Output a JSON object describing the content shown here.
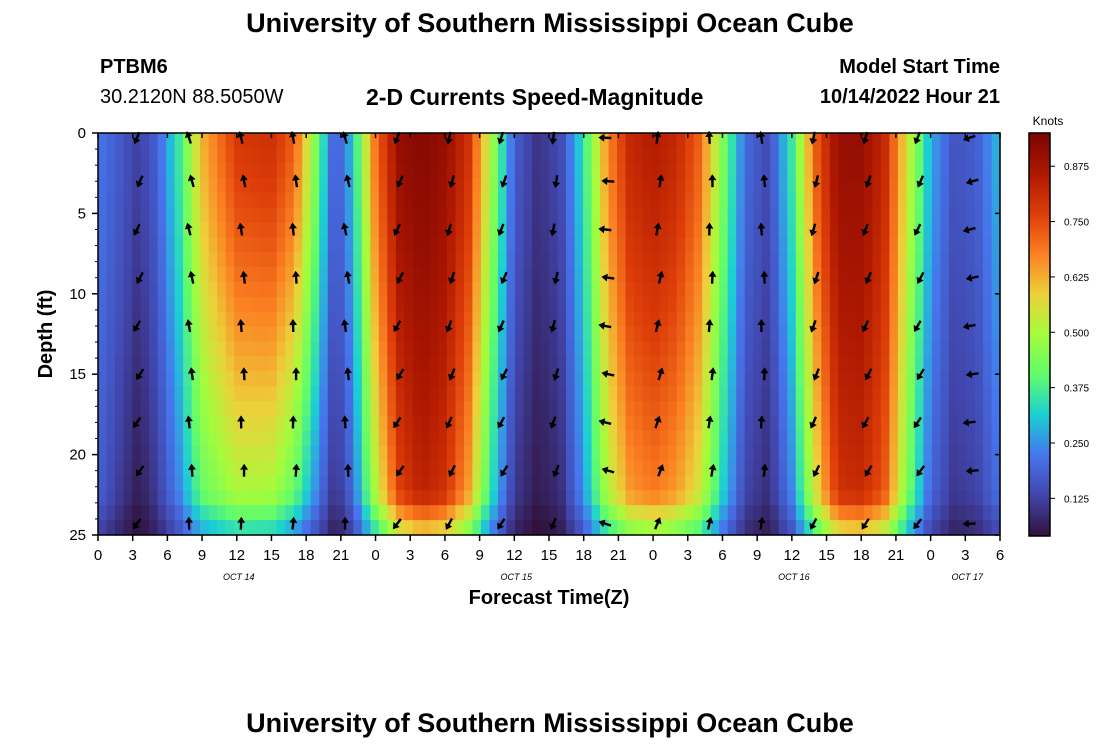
{
  "header": {
    "title": "University of Southern Mississippi Ocean Cube",
    "station": "PTBM6",
    "coords": "30.2120N  88.5050W",
    "subtitle": "2-D Currents Speed-Magnitude",
    "model_start_label": "Model Start Time",
    "model_start_value": "10/14/2022 Hour 21"
  },
  "footer": {
    "title": "University of Southern Mississippi Ocean Cube"
  },
  "chart_data": {
    "type": "heatmap",
    "title": "2-D Currents Speed-Magnitude",
    "xlabel": "Forecast Time(Z)",
    "ylabel": "Depth (ft)",
    "xlim": [
      0,
      78
    ],
    "ylim": [
      0,
      25
    ],
    "x_ticks": [
      0,
      3,
      6,
      9,
      12,
      15,
      18,
      21,
      24,
      27,
      30,
      33,
      36,
      39,
      42,
      45,
      48,
      51,
      54,
      57,
      60,
      63,
      66,
      69,
      72,
      75,
      78
    ],
    "x_tick_labels": [
      "0",
      "3",
      "6",
      "9",
      "12",
      "15",
      "18",
      "21",
      "0",
      "3",
      "6",
      "9",
      "12",
      "15",
      "18",
      "21",
      "0",
      "3",
      "6",
      "9",
      "12",
      "15",
      "18",
      "21",
      "0",
      "3",
      "6"
    ],
    "y_ticks": [
      0,
      5,
      10,
      15,
      20,
      25
    ],
    "y_tick_labels": [
      "0",
      "5",
      "10",
      "15",
      "20",
      "25"
    ],
    "date_labels": [
      {
        "text": "OCT 14",
        "x": 12
      },
      {
        "text": "OCT 15",
        "x": 36
      },
      {
        "text": "OCT 16",
        "x": 60
      },
      {
        "text": "OCT 17",
        "x": 75
      }
    ],
    "colorbar": {
      "label": "Knots",
      "min": 0.04,
      "max": 0.95,
      "ticks": [
        0.125,
        0.25,
        0.375,
        0.5,
        0.625,
        0.75,
        0.875
      ],
      "tick_labels": [
        "0.125",
        "0.250",
        "0.375",
        "0.500",
        "0.625",
        "0.750",
        "0.875"
      ]
    },
    "speed_profile": {
      "time": [
        0,
        2,
        3.5,
        5,
        7,
        9,
        12,
        15,
        17,
        19,
        20.5,
        22,
        24,
        26,
        28,
        30,
        32,
        34,
        36,
        38,
        40,
        42,
        44,
        46,
        48,
        50,
        52,
        54,
        56,
        58,
        60,
        62,
        64,
        66,
        68,
        70,
        72,
        74,
        76,
        78
      ],
      "surface_knots": [
        0.22,
        0.17,
        0.12,
        0.18,
        0.36,
        0.62,
        0.78,
        0.8,
        0.72,
        0.42,
        0.16,
        0.3,
        0.7,
        0.9,
        0.93,
        0.9,
        0.8,
        0.5,
        0.18,
        0.1,
        0.14,
        0.35,
        0.66,
        0.82,
        0.85,
        0.82,
        0.72,
        0.45,
        0.2,
        0.14,
        0.36,
        0.72,
        0.9,
        0.9,
        0.82,
        0.55,
        0.28,
        0.16,
        0.18,
        0.3
      ],
      "deep_knots": [
        0.18,
        0.1,
        0.05,
        0.1,
        0.22,
        0.38,
        0.46,
        0.45,
        0.36,
        0.2,
        0.08,
        0.18,
        0.48,
        0.74,
        0.82,
        0.78,
        0.62,
        0.32,
        0.1,
        0.05,
        0.08,
        0.24,
        0.48,
        0.62,
        0.66,
        0.62,
        0.52,
        0.3,
        0.12,
        0.08,
        0.22,
        0.52,
        0.78,
        0.8,
        0.72,
        0.42,
        0.18,
        0.1,
        0.12,
        0.2
      ]
    },
    "arrow_rows_depth_ft": [
      0.3,
      3,
      6,
      9,
      12,
      15,
      18,
      21,
      24.3
    ],
    "arrow_columns": [
      {
        "time": 3.5,
        "dir_deg": 210
      },
      {
        "time": 8,
        "dir_deg": -10
      },
      {
        "time": 12.5,
        "dir_deg": -5
      },
      {
        "time": 17,
        "dir_deg": -2
      },
      {
        "time": 21.5,
        "dir_deg": -8
      },
      {
        "time": 26,
        "dir_deg": 210
      },
      {
        "time": 30.5,
        "dir_deg": 200
      },
      {
        "time": 35,
        "dir_deg": 205
      },
      {
        "time": 39.5,
        "dir_deg": 195
      },
      {
        "time": 44,
        "dir_deg": 280
      },
      {
        "time": 48.5,
        "dir_deg": 15
      },
      {
        "time": 53,
        "dir_deg": 5
      },
      {
        "time": 57.5,
        "dir_deg": 0
      },
      {
        "time": 62,
        "dir_deg": 200
      },
      {
        "time": 66.5,
        "dir_deg": 205
      },
      {
        "time": 71,
        "dir_deg": 210
      },
      {
        "time": 75.5,
        "dir_deg": 260
      }
    ]
  }
}
